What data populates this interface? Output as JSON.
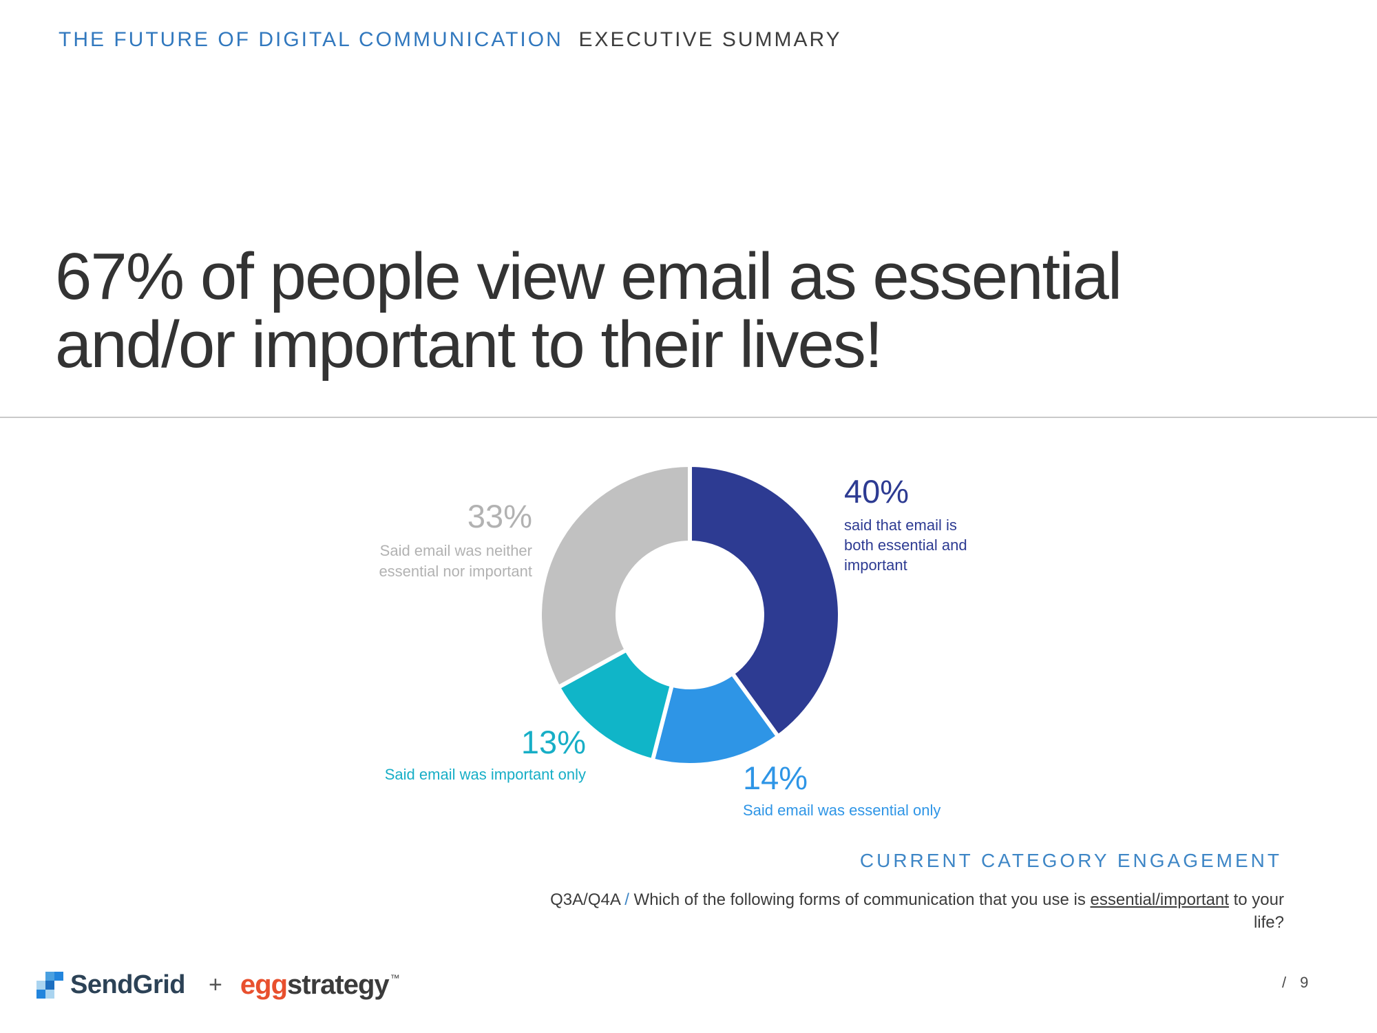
{
  "header": {
    "title_primary": "THE FUTURE OF DIGITAL COMMUNICATION",
    "title_secondary": "EXECUTIVE SUMMARY",
    "primary_color": "#3178be",
    "secondary_color": "#3d3d3d"
  },
  "title": {
    "line1": "67% of people view email as essential",
    "line2": "and/or important to their lives!"
  },
  "chart_data": {
    "type": "pie",
    "subtype": "donut",
    "unit": "%",
    "start_angle_deg": 0,
    "clockwise": true,
    "inner_radius_ratio": 0.48,
    "slices": [
      {
        "value": 40,
        "label": "said that email is both essential and important",
        "color": "#2d3b92",
        "label_color": "#2d3b92"
      },
      {
        "value": 14,
        "label": "Said email was essential only",
        "color": "#2e95e6",
        "label_color": "#2e95e6"
      },
      {
        "value": 13,
        "label": "Said email was important only",
        "color": "#10b5c8",
        "label_color": "#17aec6"
      },
      {
        "value": 33,
        "label": "Said email was neither essential nor important",
        "color": "#c1c1c1",
        "label_color": "#b2b2b2"
      }
    ],
    "separator_color": "#ffffff"
  },
  "engagement_label": "CURRENT CATEGORY ENGAGEMENT",
  "engagement_color": "#3e86c6",
  "question": {
    "code": "Q3A/Q4A",
    "separator": "/",
    "separator_color": "#3e86c6",
    "text_before": "Which of the following forms of communication that you use is",
    "underlined": "essential/important",
    "text_after": "to your life?"
  },
  "footer": {
    "sendgrid_wordmark": "SendGrid",
    "plus": "+",
    "egg_bold": "egg",
    "egg_rest": "strategy",
    "trademark": "™",
    "sendgrid_icon_cells": [
      [
        null,
        "#4aa0e0",
        "#2285dd"
      ],
      [
        "#aad4f0",
        "#1d6fc0",
        null
      ],
      [
        "#2285dd",
        "#aad4f0",
        null
      ]
    ]
  },
  "page": {
    "separator": "/",
    "number": "9"
  }
}
